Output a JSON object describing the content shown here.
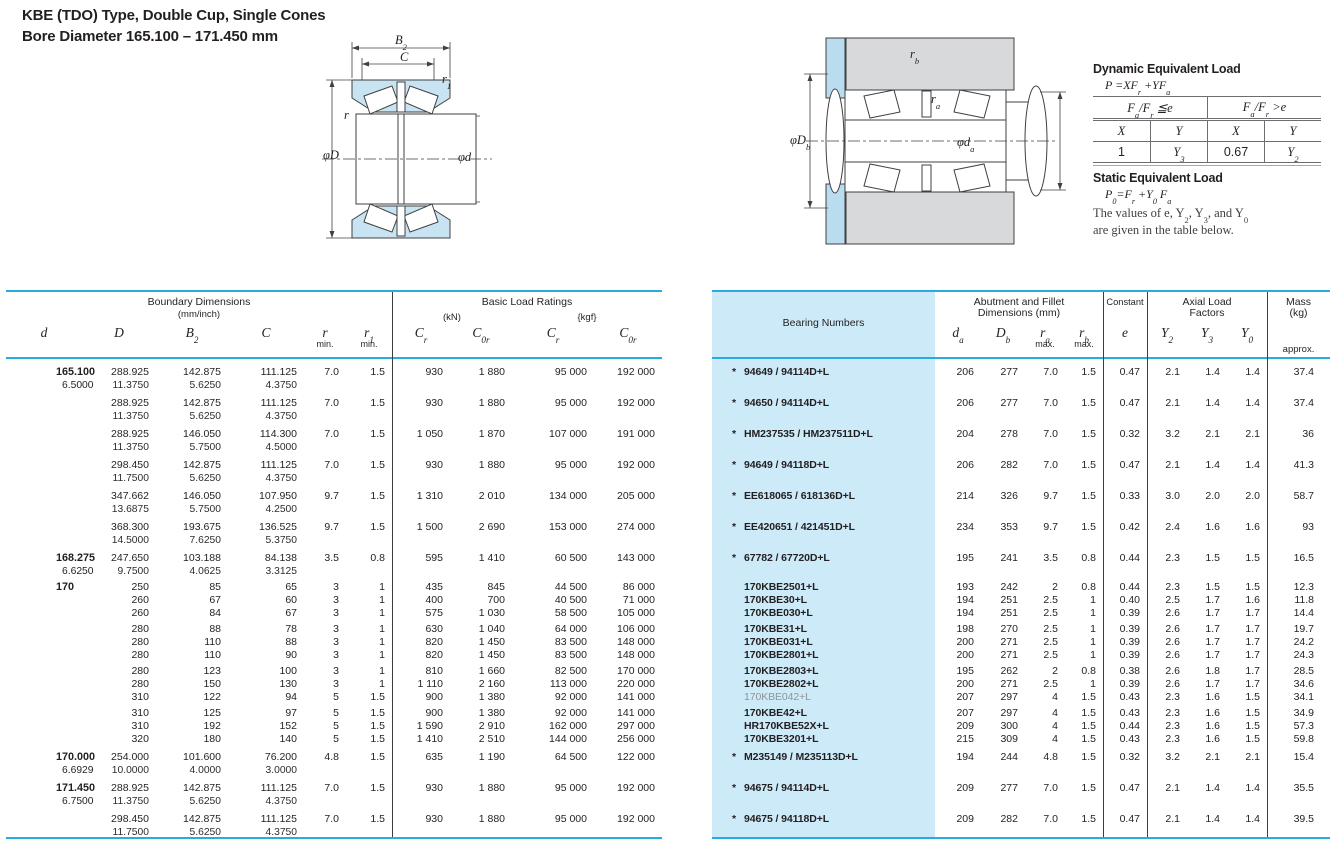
{
  "page": {
    "title_line1": "KBE (TDO) Type, Double Cup, Single Cones",
    "title_line2": "Bore Diameter   165.100 – 171.450 mm"
  },
  "diagrams": {
    "left": {
      "b2": "B~2~",
      "c": "C",
      "r1": "r~1~",
      "r": "r",
      "phiD": "φD",
      "phid": "φd"
    },
    "right": {
      "rb": "r~b~",
      "ra": "r~a~",
      "phiDb": "φD~b~",
      "phida": "φd~a~"
    }
  },
  "load_info": {
    "dynamic_title": "Dynamic Equivalent Load",
    "dynamic_formula": "P =XF~r~ +YF~a~",
    "cond_le": "F~a~/F~r~ ≦e",
    "cond_gt": "F~a~/F~r~ >e",
    "x1": "X",
    "y1": "Y",
    "x2": "X",
    "y2": "Y",
    "v1": "1",
    "v2": "Y~3~",
    "v3": "0.67",
    "v4": "Y~2~",
    "static_title": "Static Equivalent Load",
    "static_formula": "P~0~=F~r~ +Y~0~ F~a~",
    "note1": "The values of e, Y~2~, Y~3~, and Y~0~",
    "note2": "are given in the table below."
  },
  "left_table": {
    "header": {
      "group1": "Boundary Dimensions",
      "group1_sub": "(mm/inch)",
      "group2": "Basic Load Ratings",
      "kn": "(kN)",
      "kgf": "{kgf}",
      "sym_d": "d",
      "sym_D": "D",
      "sym_B2": "B~2~",
      "sym_C": "C",
      "sym_r": "r",
      "sym_r1": "r~1~",
      "min1": "min.",
      "min2": "min.",
      "sym_cr1": "C~r~",
      "sym_c0r1": "C~0r~",
      "sym_cr2": "C~r~",
      "sym_c0r2": "C~0r~"
    },
    "groups": [
      {
        "d": "165.100",
        "d_in": "6.5000",
        "lines": [
          {
            "mm": [
              "288.925",
              "142.875",
              "111.125"
            ],
            "in": [
              "11.3750",
              "5.6250",
              "4.3750"
            ],
            "v": [
              "7.0",
              "1.5",
              "930",
              "1 880",
              "95 000",
              "192 000"
            ]
          }
        ]
      },
      {
        "lines": [
          {
            "mm": [
              "288.925",
              "142.875",
              "111.125"
            ],
            "in": [
              "11.3750",
              "5.6250",
              "4.3750"
            ],
            "v": [
              "7.0",
              "1.5",
              "930",
              "1 880",
              "95 000",
              "192 000"
            ]
          }
        ]
      },
      {
        "lines": [
          {
            "mm": [
              "288.925",
              "146.050",
              "114.300"
            ],
            "in": [
              "11.3750",
              "5.7500",
              "4.5000"
            ],
            "v": [
              "7.0",
              "1.5",
              "1 050",
              "1 870",
              "107 000",
              "191 000"
            ]
          }
        ]
      },
      {
        "lines": [
          {
            "mm": [
              "298.450",
              "142.875",
              "111.125"
            ],
            "in": [
              "11.7500",
              "5.6250",
              "4.3750"
            ],
            "v": [
              "7.0",
              "1.5",
              "930",
              "1 880",
              "95 000",
              "192 000"
            ]
          }
        ]
      },
      {
        "lines": [
          {
            "mm": [
              "347.662",
              "146.050",
              "107.950"
            ],
            "in": [
              "13.6875",
              "5.7500",
              "4.2500"
            ],
            "v": [
              "9.7",
              "1.5",
              "1 310",
              "2 010",
              "134 000",
              "205 000"
            ]
          }
        ]
      },
      {
        "lines": [
          {
            "mm": [
              "368.300",
              "193.675",
              "136.525"
            ],
            "in": [
              "14.5000",
              "7.6250",
              "5.3750"
            ],
            "v": [
              "9.7",
              "1.5",
              "1 500",
              "2 690",
              "153 000",
              "274 000"
            ]
          }
        ]
      },
      {
        "d": "168.275",
        "d_in": "6.6250",
        "lines": [
          {
            "mm": [
              "247.650",
              "103.188",
              "84.138"
            ],
            "in": [
              "9.7500",
              "4.0625",
              "3.3125"
            ],
            "v": [
              "3.5",
              "0.8",
              "595",
              "1 410",
              "60 500",
              "143 000"
            ]
          }
        ]
      },
      {
        "d": "170",
        "lines": [
          {
            "mm": [
              "250",
              "85",
              "65"
            ],
            "v": [
              "3",
              "1",
              "435",
              "845",
              "44 500",
              "86 000"
            ]
          },
          {
            "mm": [
              "260",
              "67",
              "60"
            ],
            "v": [
              "3",
              "1",
              "400",
              "700",
              "40 500",
              "71 000"
            ]
          },
          {
            "mm": [
              "260",
              "84",
              "67"
            ],
            "v": [
              "3",
              "1",
              "575",
              "1 030",
              "58 500",
              "105 000"
            ]
          }
        ]
      },
      {
        "lines": [
          {
            "mm": [
              "280",
              "88",
              "78"
            ],
            "v": [
              "3",
              "1",
              "630",
              "1 040",
              "64 000",
              "106 000"
            ]
          },
          {
            "mm": [
              "280",
              "110",
              "88"
            ],
            "v": [
              "3",
              "1",
              "820",
              "1 450",
              "83 500",
              "148 000"
            ]
          },
          {
            "mm": [
              "280",
              "110",
              "90"
            ],
            "v": [
              "3",
              "1",
              "820",
              "1 450",
              "83 500",
              "148 000"
            ]
          }
        ]
      },
      {
        "lines": [
          {
            "mm": [
              "280",
              "123",
              "100"
            ],
            "v": [
              "3",
              "1",
              "810",
              "1 660",
              "82 500",
              "170 000"
            ]
          },
          {
            "mm": [
              "280",
              "150",
              "130"
            ],
            "v": [
              "3",
              "1",
              "1 110",
              "2 160",
              "113 000",
              "220 000"
            ]
          },
          {
            "mm": [
              "310",
              "122",
              "94"
            ],
            "v": [
              "5",
              "1.5",
              "900",
              "1 380",
              "92 000",
              "141 000"
            ]
          }
        ]
      },
      {
        "lines": [
          {
            "mm": [
              "310",
              "125",
              "97"
            ],
            "v": [
              "5",
              "1.5",
              "900",
              "1 380",
              "92 000",
              "141 000"
            ]
          },
          {
            "mm": [
              "310",
              "192",
              "152"
            ],
            "v": [
              "5",
              "1.5",
              "1 590",
              "2 910",
              "162 000",
              "297 000"
            ]
          },
          {
            "mm": [
              "320",
              "180",
              "140"
            ],
            "v": [
              "5",
              "1.5",
              "1 410",
              "2 510",
              "144 000",
              "256 000"
            ]
          }
        ]
      },
      {
        "d": "170.000",
        "d_in": "6.6929",
        "lines": [
          {
            "mm": [
              "254.000",
              "101.600",
              "76.200"
            ],
            "in": [
              "10.0000",
              "4.0000",
              "3.0000"
            ],
            "v": [
              "4.8",
              "1.5",
              "635",
              "1 190",
              "64 500",
              "122 000"
            ]
          }
        ]
      },
      {
        "d": "171.450",
        "d_in": "6.7500",
        "lines": [
          {
            "mm": [
              "288.925",
              "142.875",
              "111.125"
            ],
            "in": [
              "11.3750",
              "5.6250",
              "4.3750"
            ],
            "v": [
              "7.0",
              "1.5",
              "930",
              "1 880",
              "95 000",
              "192 000"
            ]
          }
        ]
      },
      {
        "lines": [
          {
            "mm": [
              "298.450",
              "142.875",
              "111.125"
            ],
            "in": [
              "11.7500",
              "5.6250",
              "4.3750"
            ],
            "v": [
              "7.0",
              "1.5",
              "930",
              "1 880",
              "95 000",
              "192 000"
            ]
          }
        ]
      }
    ]
  },
  "right_table": {
    "header": {
      "bearing_numbers": "Bearing Numbers",
      "abut1": "Abutment and Fillet",
      "abut2": "Dimensions (mm)",
      "sym_da": "d~a~",
      "sym_Db": "D~b~",
      "sym_ra": "r~a~",
      "sym_rb": "r~b~",
      "max1": "max.",
      "max2": "max.",
      "constant": "Constant",
      "sym_e": "e",
      "axial1": "Axial Load",
      "axial2": "Factors",
      "sym_y2": "Y~2~",
      "sym_y3": "Y~3~",
      "sym_y0": "Y~0~",
      "mass1": "Mass",
      "mass2": "(kg)",
      "approx": "approx."
    },
    "groups": [
      {
        "lines": [
          {
            "star": true,
            "name": "94649 / 94114D+L",
            "v": [
              "206",
              "277",
              "7.0",
              "1.5",
              "0.47",
              "2.1",
              "1.4",
              "1.4",
              "37.4"
            ]
          }
        ]
      },
      {
        "lines": [
          {
            "star": true,
            "name": "94650 / 94114D+L",
            "v": [
              "206",
              "277",
              "7.0",
              "1.5",
              "0.47",
              "2.1",
              "1.4",
              "1.4",
              "37.4"
            ]
          }
        ]
      },
      {
        "lines": [
          {
            "star": true,
            "name": "HM237535 / HM237511D+L",
            "v": [
              "204",
              "278",
              "7.0",
              "1.5",
              "0.32",
              "3.2",
              "2.1",
              "2.1",
              "36"
            ]
          }
        ]
      },
      {
        "lines": [
          {
            "star": true,
            "name": "94649 / 94118D+L",
            "v": [
              "206",
              "282",
              "7.0",
              "1.5",
              "0.47",
              "2.1",
              "1.4",
              "1.4",
              "41.3"
            ]
          }
        ]
      },
      {
        "lines": [
          {
            "star": true,
            "name": "EE618065 / 618136D+L",
            "v": [
              "214",
              "326",
              "9.7",
              "1.5",
              "0.33",
              "3.0",
              "2.0",
              "2.0",
              "58.7"
            ]
          }
        ]
      },
      {
        "lines": [
          {
            "star": true,
            "name": "EE420651 / 421451D+L",
            "v": [
              "234",
              "353",
              "9.7",
              "1.5",
              "0.42",
              "2.4",
              "1.6",
              "1.6",
              "93"
            ]
          }
        ]
      },
      {
        "lines": [
          {
            "star": true,
            "name": "67782 / 67720D+L",
            "v": [
              "195",
              "241",
              "3.5",
              "0.8",
              "0.44",
              "2.3",
              "1.5",
              "1.5",
              "16.5"
            ]
          }
        ]
      },
      {
        "lines": [
          {
            "name": "170KBE2501+L",
            "v": [
              "193",
              "242",
              "2",
              "0.8",
              "0.44",
              "2.3",
              "1.5",
              "1.5",
              "12.3"
            ]
          },
          {
            "name": "170KBE30+L",
            "v": [
              "194",
              "251",
              "2.5",
              "1",
              "0.40",
              "2.5",
              "1.7",
              "1.6",
              "11.8"
            ]
          },
          {
            "name": "170KBE030+L",
            "v": [
              "194",
              "251",
              "2.5",
              "1",
              "0.39",
              "2.6",
              "1.7",
              "1.7",
              "14.4"
            ]
          }
        ]
      },
      {
        "lines": [
          {
            "name": "170KBE31+L",
            "v": [
              "198",
              "270",
              "2.5",
              "1",
              "0.39",
              "2.6",
              "1.7",
              "1.7",
              "19.7"
            ]
          },
          {
            "name": "170KBE031+L",
            "v": [
              "200",
              "271",
              "2.5",
              "1",
              "0.39",
              "2.6",
              "1.7",
              "1.7",
              "24.2"
            ]
          },
          {
            "name": "170KBE2801+L",
            "v": [
              "200",
              "271",
              "2.5",
              "1",
              "0.39",
              "2.6",
              "1.7",
              "1.7",
              "24.3"
            ]
          }
        ]
      },
      {
        "lines": [
          {
            "name": "170KBE2803+L",
            "v": [
              "195",
              "262",
              "2",
              "0.8",
              "0.38",
              "2.6",
              "1.8",
              "1.7",
              "28.5"
            ]
          },
          {
            "name": "170KBE2802+L",
            "v": [
              "200",
              "271",
              "2.5",
              "1",
              "0.39",
              "2.6",
              "1.7",
              "1.7",
              "34.6"
            ]
          },
          {
            "name": "170KBE042+L",
            "muted": true,
            "v": [
              "207",
              "297",
              "4",
              "1.5",
              "0.43",
              "2.3",
              "1.6",
              "1.5",
              "34.1"
            ]
          }
        ]
      },
      {
        "lines": [
          {
            "name": "170KBE42+L",
            "v": [
              "207",
              "297",
              "4",
              "1.5",
              "0.43",
              "2.3",
              "1.6",
              "1.5",
              "34.9"
            ]
          },
          {
            "name": "HR170KBE52X+L",
            "v": [
              "209",
              "300",
              "4",
              "1.5",
              "0.44",
              "2.3",
              "1.6",
              "1.5",
              "57.3"
            ]
          },
          {
            "name": "170KBE3201+L",
            "v": [
              "215",
              "309",
              "4",
              "1.5",
              "0.43",
              "2.3",
              "1.6",
              "1.5",
              "59.8"
            ]
          }
        ]
      },
      {
        "lines": [
          {
            "star": true,
            "name": "M235149 / M235113D+L",
            "v": [
              "194",
              "244",
              "4.8",
              "1.5",
              "0.32",
              "3.2",
              "2.1",
              "2.1",
              "15.4"
            ]
          }
        ]
      },
      {
        "lines": [
          {
            "star": true,
            "name": "94675 / 94114D+L",
            "v": [
              "209",
              "277",
              "7.0",
              "1.5",
              "0.47",
              "2.1",
              "1.4",
              "1.4",
              "35.5"
            ]
          }
        ]
      },
      {
        "lines": [
          {
            "star": true,
            "name": "94675 / 94118D+L",
            "v": [
              "209",
              "282",
              "7.0",
              "1.5",
              "0.47",
              "2.1",
              "1.4",
              "1.4",
              "39.5"
            ]
          }
        ]
      }
    ]
  }
}
